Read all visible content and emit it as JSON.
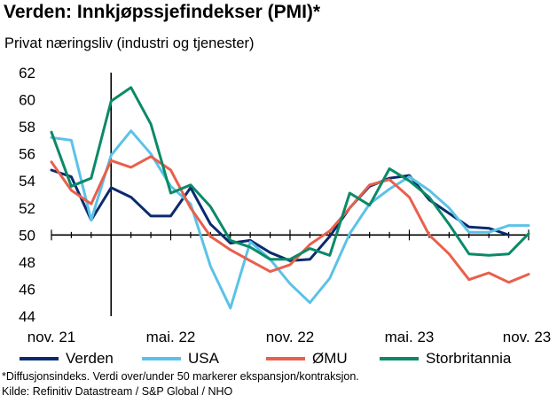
{
  "chart_data": {
    "type": "line",
    "title": "Verden: Innkjøpssjefindekser (PMI)*",
    "subtitle": "Privat næringsliv (industri og tjenester)",
    "ylim": [
      44,
      62
    ],
    "yticks": [
      44,
      46,
      48,
      50,
      52,
      54,
      56,
      58,
      60,
      62
    ],
    "xlim": [
      0,
      24
    ],
    "xticks": [
      {
        "x": 0,
        "label": "nov. 21"
      },
      {
        "x": 6,
        "label": "mai. 22"
      },
      {
        "x": 12,
        "label": "nov. 22"
      },
      {
        "x": 18,
        "label": "mai. 23"
      },
      {
        "x": 24,
        "label": "nov. 23"
      }
    ],
    "reference_line_y": 50,
    "vertical_marker_x": 3,
    "grid": false,
    "legend_position": "bottom",
    "series": [
      {
        "name": "Verden",
        "color": "#0a2b6e",
        "values": [
          54.8,
          54.3,
          51.1,
          53.5,
          52.8,
          51.4,
          51.4,
          53.5,
          50.8,
          49.4,
          49.6,
          48.7,
          48.1,
          48.2,
          49.9,
          52.0,
          53.6,
          54.2,
          54.4,
          52.6,
          51.6,
          50.6,
          50.5,
          50.0,
          null
        ]
      },
      {
        "name": "USA",
        "color": "#5bc2e7",
        "values": [
          57.2,
          57.0,
          51.1,
          55.9,
          57.7,
          56.0,
          53.6,
          52.3,
          47.7,
          44.6,
          49.5,
          48.2,
          46.4,
          45.0,
          46.8,
          50.1,
          52.3,
          53.4,
          54.3,
          53.3,
          52.0,
          50.2,
          50.2,
          50.7,
          50.7
        ]
      },
      {
        "name": "ØMU",
        "color": "#e8604c",
        "values": [
          55.4,
          53.3,
          52.3,
          55.5,
          55.0,
          55.8,
          54.8,
          52.0,
          49.9,
          48.9,
          48.1,
          47.3,
          47.8,
          49.3,
          50.3,
          52.0,
          53.7,
          54.1,
          52.8,
          50.0,
          48.6,
          46.7,
          47.2,
          46.5,
          47.1
        ]
      },
      {
        "name": "Storbritannia",
        "color": "#0b8a67",
        "values": [
          57.6,
          53.6,
          54.2,
          59.9,
          60.9,
          58.2,
          53.1,
          53.7,
          52.1,
          49.6,
          49.1,
          48.2,
          48.2,
          49.0,
          48.5,
          53.1,
          52.2,
          54.9,
          54.0,
          52.8,
          50.8,
          48.6,
          48.5,
          48.6,
          50.1
        ]
      }
    ],
    "notes": [
      "*Diffusjonsindeks. Verdi over/under 50 markerer ekspansjon/kontraksjon.",
      "Kilde: Refinitiv Datastream / S&P Global / NHO"
    ]
  }
}
